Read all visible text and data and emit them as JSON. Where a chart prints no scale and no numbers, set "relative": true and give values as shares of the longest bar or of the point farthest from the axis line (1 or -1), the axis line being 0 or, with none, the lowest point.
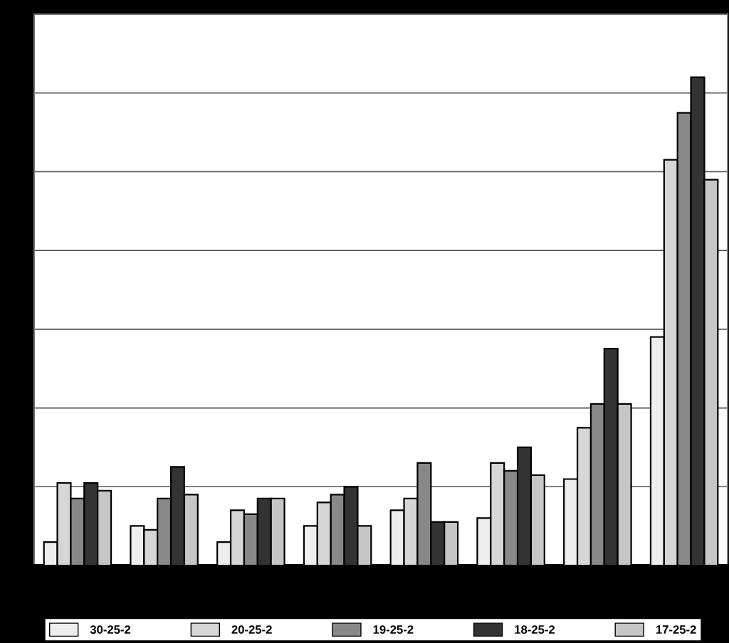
{
  "chart_data": {
    "type": "bar",
    "relative": true,
    "categories": [
      null,
      null,
      null,
      null,
      null,
      null,
      null,
      null
    ],
    "series": [
      {
        "name": "30-25-2",
        "color": "#eeeeee",
        "values": [
          0.048,
          0.081,
          0.048,
          0.081,
          0.113,
          0.097,
          0.177,
          0.468
        ]
      },
      {
        "name": "20-25-2",
        "color": "#d6d6d6",
        "values": [
          0.169,
          0.073,
          0.113,
          0.129,
          0.137,
          0.21,
          0.282,
          0.831
        ]
      },
      {
        "name": "19-25-2",
        "color": "#888888",
        "values": [
          0.137,
          0.137,
          0.105,
          0.145,
          0.21,
          0.194,
          0.331,
          0.927
        ]
      },
      {
        "name": "18-25-2",
        "color": "#333333",
        "values": [
          0.169,
          0.202,
          0.137,
          0.161,
          0.089,
          0.242,
          0.444,
          1
        ]
      },
      {
        "name": "17-25-2",
        "color": "#c6c6c6",
        "values": [
          0.153,
          0.145,
          0.137,
          0.081,
          0.089,
          0.185,
          0.331,
          0.79
        ]
      }
    ],
    "grid": "y",
    "legend": "bottom"
  }
}
